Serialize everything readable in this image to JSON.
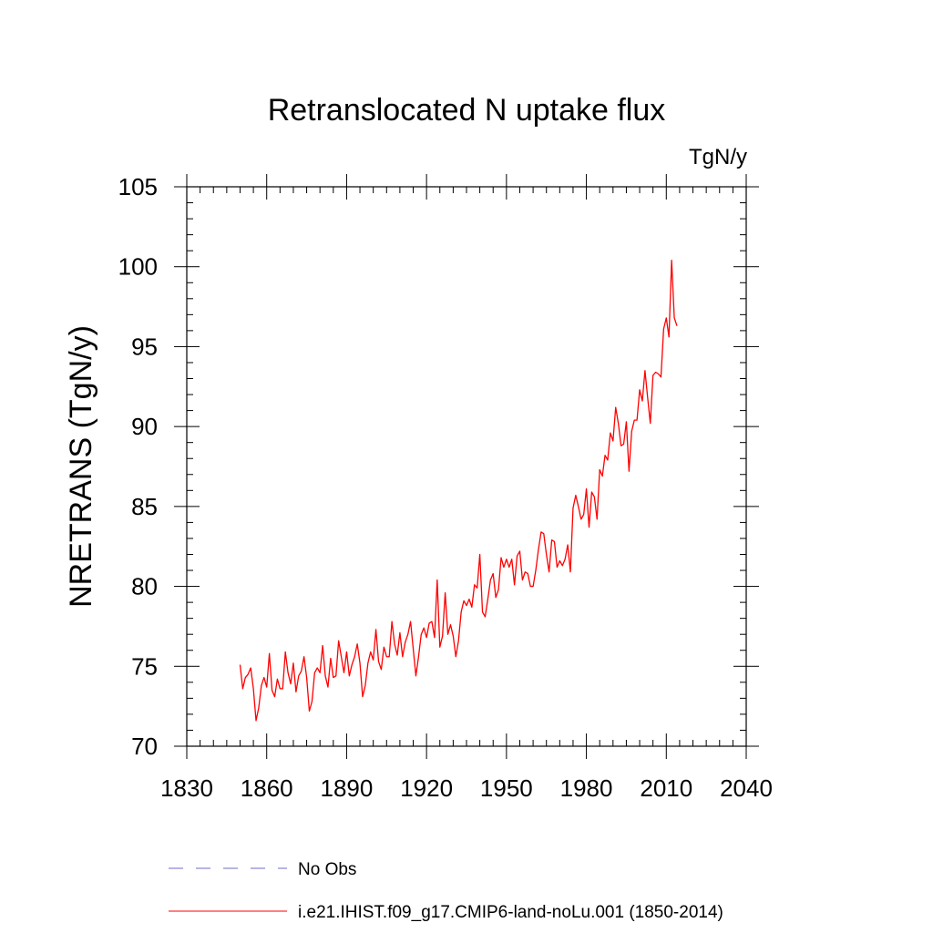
{
  "chart_data": {
    "type": "line",
    "title": "Retranslocated N uptake flux",
    "units": "TgN/y",
    "ylabel": "NRETRANS  (TgN/y)",
    "xlabel": "",
    "xlim": [
      1830,
      2040
    ],
    "ylim": [
      70,
      105
    ],
    "xticks": [
      1830,
      1860,
      1890,
      1920,
      1950,
      1980,
      2010,
      2040
    ],
    "yticks": [
      70,
      75,
      80,
      85,
      90,
      95,
      100,
      105
    ],
    "grid": false,
    "legend_position": "bottom",
    "series": [
      {
        "name": "i.e21.IHIST.f09_g17.CMIP6-land-noLu.001 (1850-2014)",
        "color": "#ff0000",
        "style": "solid",
        "x_start": 1850,
        "values": [
          75.1,
          73.6,
          74.3,
          74.5,
          74.9,
          73.6,
          71.6,
          72.4,
          73.8,
          74.3,
          73.7,
          75.8,
          73.5,
          73.1,
          74.2,
          73.6,
          73.6,
          75.9,
          74.6,
          73.9,
          75.2,
          73.4,
          74.4,
          74.7,
          75.6,
          74.3,
          72.2,
          72.8,
          74.6,
          74.9,
          74.6,
          76.3,
          74.4,
          73.7,
          75.5,
          74.3,
          74.4,
          76.6,
          75.6,
          74.6,
          75.9,
          74.4,
          75.1,
          75.6,
          76.4,
          75.2,
          73.1,
          73.8,
          75.2,
          75.9,
          75.4,
          77.3,
          75.3,
          74.8,
          76.2,
          75.6,
          75.6,
          77.8,
          76.4,
          75.7,
          77.1,
          75.6,
          76.5,
          77.0,
          77.8,
          76.1,
          74.4,
          75.6,
          77.0,
          77.4,
          76.8,
          77.7,
          77.8,
          76.8,
          80.4,
          76.2,
          76.9,
          79.6,
          77.0,
          77.6,
          76.9,
          75.6,
          76.6,
          78.4,
          79.1,
          78.8,
          79.2,
          78.7,
          80.1,
          79.9,
          82.0,
          78.4,
          78.1,
          79.2,
          80.4,
          80.8,
          79.3,
          79.8,
          81.8,
          81.2,
          81.7,
          81.2,
          81.7,
          80.1,
          81.9,
          82.2,
          80.4,
          80.9,
          80.8,
          80.0,
          80.0,
          81.0,
          82.3,
          83.4,
          83.3,
          82.0,
          80.9,
          82.9,
          82.8,
          81.2,
          81.6,
          81.3,
          81.7,
          82.6,
          80.9,
          84.9,
          85.7,
          85.0,
          84.2,
          84.5,
          86.1,
          83.7,
          85.9,
          85.6,
          84.2,
          87.3,
          86.9,
          88.2,
          87.9,
          89.6,
          89.1,
          91.2,
          90.2,
          88.8,
          88.9,
          90.3,
          87.2,
          89.7,
          90.4,
          90.4,
          92.3,
          91.6,
          93.5,
          91.8,
          90.2,
          93.2,
          93.4,
          93.3,
          93.1,
          96.1,
          96.8,
          95.6,
          100.4,
          96.8,
          96.3
        ]
      },
      {
        "name": "No Obs",
        "color": "#6e6ec8",
        "style": "dashed",
        "values": []
      }
    ]
  }
}
